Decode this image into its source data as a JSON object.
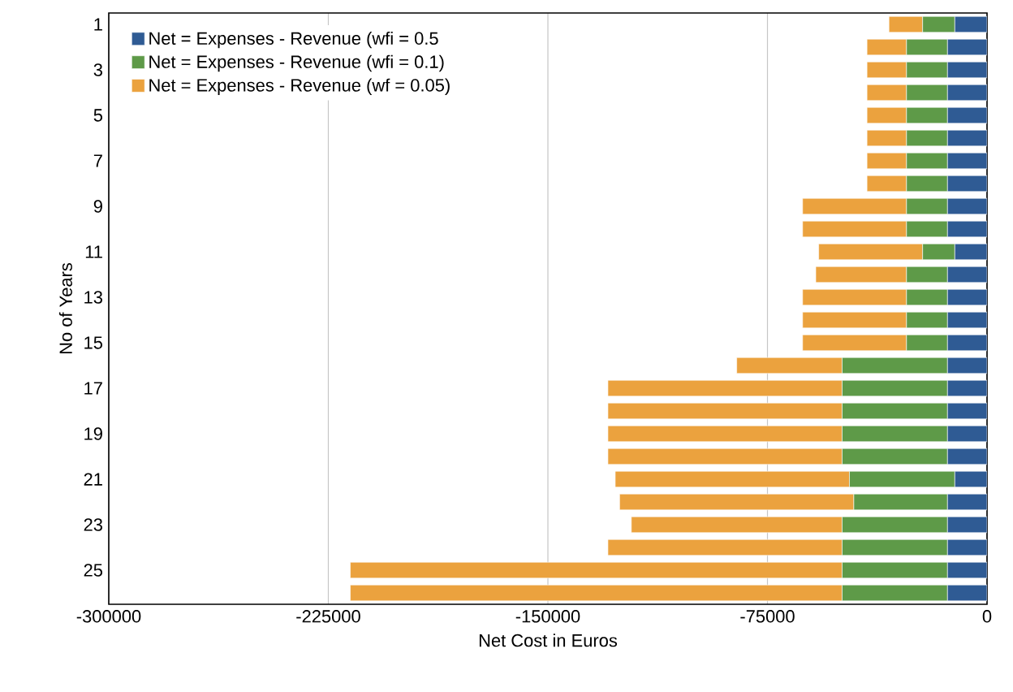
{
  "chart_data": {
    "type": "bar",
    "orientation": "horizontal",
    "stacked": true,
    "xlabel": "Net Cost in Euros",
    "ylabel": "No of Years",
    "categories": [
      "1",
      null,
      "3",
      null,
      "5",
      null,
      "7",
      null,
      "9",
      null,
      "11",
      null,
      "13",
      null,
      "15",
      null,
      "17",
      null,
      "19",
      null,
      "21",
      null,
      "23",
      null,
      "25",
      null
    ],
    "series": [
      {
        "name": "Net = Expenses - Revenue (wfi = 0.5",
        "color": "#2f5b94",
        "values": [
          -11000,
          -13500,
          -13500,
          -13500,
          -13500,
          -13500,
          -13500,
          -13500,
          -13500,
          -13500,
          -11000,
          -13500,
          -13500,
          -13500,
          -13500,
          -13500,
          -13500,
          -13500,
          -13500,
          -13500,
          -11000,
          -13500,
          -13500,
          -13500,
          -13500,
          -13500
        ]
      },
      {
        "name": "Net = Expenses - Revenue (wfi = 0.1)",
        "color": "#5e9a48",
        "values": [
          -11000,
          -14000,
          -14000,
          -14000,
          -14000,
          -14000,
          -14000,
          -14000,
          -14000,
          -14000,
          -11000,
          -14000,
          -14000,
          -14000,
          -14000,
          -36000,
          -36000,
          -36000,
          -36000,
          -36000,
          -36000,
          -32000,
          -36000,
          -36000,
          -36000,
          -36000
        ]
      },
      {
        "name": "Net = Expenses - Revenue (wf = 0.05)",
        "color": "#eba23e",
        "values": [
          -11500,
          -13500,
          -13500,
          -13500,
          -13500,
          -13500,
          -13500,
          -13500,
          -35500,
          -35500,
          -35500,
          -31000,
          -35500,
          -35500,
          -35500,
          -36000,
          -80000,
          -80000,
          -80000,
          -80000,
          -80000,
          -80000,
          -72000,
          -80000,
          -168000,
          -168000
        ]
      }
    ],
    "xlim": [
      -300000,
      0
    ],
    "xticks": [
      -300000,
      -225000,
      -150000,
      -75000,
      0
    ],
    "grid": "x",
    "legend": "top left"
  }
}
